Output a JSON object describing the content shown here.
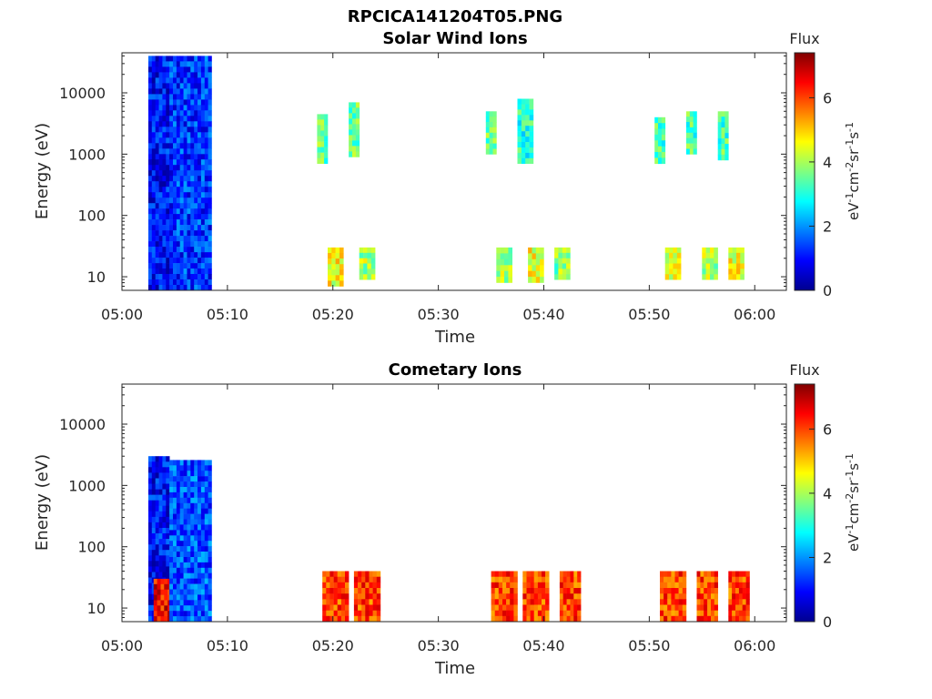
{
  "figure": {
    "title": "RPCICA141204T05.PNG"
  },
  "chart_data": [
    {
      "type": "heatmap",
      "title": "Solar Wind Ions",
      "xlabel": "Time",
      "ylabel": "Energy (eV)",
      "xticks": [
        "05:00",
        "05:10",
        "05:20",
        "05:30",
        "05:40",
        "05:50",
        "06:00"
      ],
      "xlim": [
        "05:00",
        "06:03"
      ],
      "yscale": "log",
      "yticks": [
        10,
        100,
        1000,
        10000
      ],
      "ytick_labels": [
        "10",
        "100",
        "1000",
        "10000"
      ],
      "ylim": [
        6,
        45000
      ],
      "colorbar": {
        "label_top": "Flux",
        "label_side": "eV-1cm-2sr-1s-1",
        "ticks": [
          "0",
          "2",
          "4",
          "6"
        ],
        "range": [
          0,
          7.4
        ],
        "colormap": "jet"
      },
      "regions": [
        {
          "start": "05:02.5",
          "end": "05:04.5",
          "emin": 6,
          "emax": 40000,
          "flux": 1.0,
          "note": "dense low-flux block"
        },
        {
          "start": "05:04.5",
          "end": "05:08.5",
          "emin": 6,
          "emax": 40000,
          "flux": 1.3
        },
        {
          "start": "05:18.5",
          "end": "05:19.5",
          "emin": 700,
          "emax": 4500,
          "flux": 3.5
        },
        {
          "start": "05:21.5",
          "end": "05:22.5",
          "emin": 900,
          "emax": 7000,
          "flux": 3.5
        },
        {
          "start": "05:19.5",
          "end": "05:21",
          "emin": 7,
          "emax": 30,
          "flux": 4.5
        },
        {
          "start": "05:22.5",
          "end": "05:24",
          "emin": 9,
          "emax": 30,
          "flux": 4.0
        },
        {
          "start": "05:34.5",
          "end": "05:35.5",
          "emin": 1000,
          "emax": 5000,
          "flux": 3.5
        },
        {
          "start": "05:37.5",
          "end": "05:39",
          "emin": 700,
          "emax": 8000,
          "flux": 3.0
        },
        {
          "start": "05:35.5",
          "end": "05:37",
          "emin": 8,
          "emax": 30,
          "flux": 4.0
        },
        {
          "start": "05:38.5",
          "end": "05:40",
          "emin": 8,
          "emax": 30,
          "flux": 4.5
        },
        {
          "start": "05:41",
          "end": "05:42.5",
          "emin": 9,
          "emax": 30,
          "flux": 3.8
        },
        {
          "start": "05:50.5",
          "end": "05:51.5",
          "emin": 700,
          "emax": 4000,
          "flux": 3.3
        },
        {
          "start": "05:53.5",
          "end": "05:54.5",
          "emin": 1000,
          "emax": 5000,
          "flux": 3.3
        },
        {
          "start": "05:56.5",
          "end": "05:57.5",
          "emin": 800,
          "emax": 5000,
          "flux": 3.3
        },
        {
          "start": "05:51.5",
          "end": "05:53",
          "emin": 9,
          "emax": 30,
          "flux": 4.5
        },
        {
          "start": "05:55",
          "end": "05:56.5",
          "emin": 9,
          "emax": 30,
          "flux": 4.0
        },
        {
          "start": "05:57.5",
          "end": "05:59",
          "emin": 9,
          "emax": 30,
          "flux": 4.5
        }
      ]
    },
    {
      "type": "heatmap",
      "title": "Cometary Ions",
      "xlabel": "Time",
      "ylabel": "Energy (eV)",
      "xticks": [
        "05:00",
        "05:10",
        "05:20",
        "05:30",
        "05:40",
        "05:50",
        "06:00"
      ],
      "xlim": [
        "05:00",
        "06:03"
      ],
      "yscale": "log",
      "yticks": [
        10,
        100,
        1000,
        10000
      ],
      "ytick_labels": [
        "10",
        "100",
        "1000",
        "10000"
      ],
      "ylim": [
        6,
        45000
      ],
      "colorbar": {
        "label_top": "Flux",
        "label_side": "eV-1cm-2sr-1s-1",
        "ticks": [
          "0",
          "2",
          "4",
          "6"
        ],
        "range": [
          0,
          7.4
        ],
        "colormap": "jet"
      },
      "regions": [
        {
          "start": "05:02.5",
          "end": "05:04.5",
          "emin": 6,
          "emax": 3000,
          "flux": 1.0
        },
        {
          "start": "05:03",
          "end": "05:05",
          "emin": 6,
          "emax": 30,
          "flux": 6.5
        },
        {
          "start": "05:04.5",
          "end": "05:08.5",
          "emin": 6,
          "emax": 2600,
          "flux": 1.5
        },
        {
          "start": "05:19",
          "end": "05:21.5",
          "emin": 6,
          "emax": 40,
          "flux": 6.0
        },
        {
          "start": "05:22",
          "end": "05:24.5",
          "emin": 6,
          "emax": 40,
          "flux": 6.0
        },
        {
          "start": "05:35",
          "end": "05:37.5",
          "emin": 6,
          "emax": 40,
          "flux": 6.0
        },
        {
          "start": "05:38",
          "end": "05:40.5",
          "emin": 6,
          "emax": 40,
          "flux": 6.0
        },
        {
          "start": "05:41.5",
          "end": "05:43.5",
          "emin": 6,
          "emax": 40,
          "flux": 6.0
        },
        {
          "start": "05:51",
          "end": "05:53.5",
          "emin": 6,
          "emax": 40,
          "flux": 6.0
        },
        {
          "start": "05:54.5",
          "end": "05:56.5",
          "emin": 6,
          "emax": 40,
          "flux": 6.0
        },
        {
          "start": "05:57.5",
          "end": "05:59.5",
          "emin": 6,
          "emax": 40,
          "flux": 6.0
        }
      ]
    }
  ]
}
